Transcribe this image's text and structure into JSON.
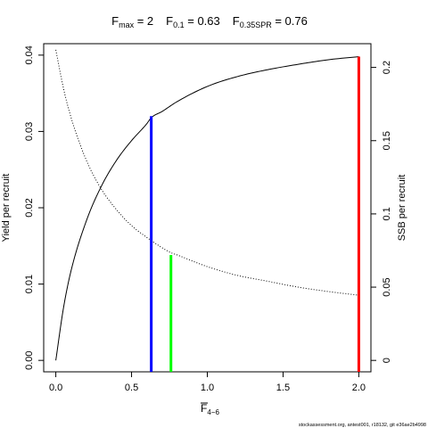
{
  "chart_data": {
    "type": "line",
    "title_parts": {
      "fmax_main": "F",
      "fmax_sub": "max",
      "fmax_value": " = 2",
      "f01_main": "F",
      "f01_sub": "0.1",
      "f01_value": " = 0.63",
      "fspr_main": "F",
      "fspr_sub": "0.35SPR",
      "fspr_value": " = 0.76"
    },
    "xlabel": {
      "main": "F",
      "sub": "4−6"
    },
    "ylabel_left": "Yield per recruit",
    "ylabel_right": "SSB per recruit",
    "xlim": [
      -0.08,
      2.08
    ],
    "ylim_left": [
      -0.0015,
      0.0415
    ],
    "ylim_right": [
      -0.0078,
      0.2162
    ],
    "x_ticks": [
      0,
      0.5,
      1,
      1.5,
      2
    ],
    "x_tick_labels": [
      "0.0",
      "0.5",
      "1.0",
      "1.5",
      "2.0"
    ],
    "y_left_ticks": [
      0,
      0.01,
      0.02,
      0.03,
      0.04
    ],
    "y_left_tick_labels": [
      "0.00",
      "0.01",
      "0.02",
      "0.03",
      "0.04"
    ],
    "y_right_ticks": [
      0,
      0.05,
      0.1,
      0.15,
      0.2
    ],
    "y_right_tick_labels": [
      "0",
      "0.05",
      "0.1",
      "0.15",
      "0.2"
    ],
    "series": [
      {
        "name": "Yield per recruit",
        "axis": "left",
        "style": "solid",
        "color": "#000000",
        "x": [
          0,
          0.05,
          0.1,
          0.2,
          0.3,
          0.4,
          0.5,
          0.6,
          0.63,
          0.7,
          0.8,
          1.0,
          1.2,
          1.4,
          1.6,
          1.8,
          2.0
        ],
        "y": [
          0,
          0.0068,
          0.0117,
          0.0182,
          0.0228,
          0.0262,
          0.0288,
          0.031,
          0.0318,
          0.0326,
          0.0339,
          0.0359,
          0.0372,
          0.0381,
          0.0388,
          0.0394,
          0.0398
        ]
      },
      {
        "name": "SSB per recruit",
        "axis": "right",
        "style": "dotted",
        "color": "#000000",
        "x": [
          0,
          0.05,
          0.1,
          0.2,
          0.3,
          0.4,
          0.5,
          0.6,
          0.7,
          0.76,
          0.8,
          1.0,
          1.2,
          1.4,
          1.6,
          1.8,
          2.0
        ],
        "y": [
          0.212,
          0.186,
          0.166,
          0.137,
          0.117,
          0.103,
          0.092,
          0.084,
          0.077,
          0.0735,
          0.072,
          0.064,
          0.058,
          0.054,
          0.05,
          0.047,
          0.0445
        ]
      }
    ],
    "reference_lines": [
      {
        "name": "F0.1",
        "x": 0.63,
        "y_top": 0.032,
        "axis": "left",
        "color": "#0000ff"
      },
      {
        "name": "F0.35SPR",
        "x": 0.76,
        "y_top": 0.0138,
        "axis": "left",
        "color": "#00ff00"
      },
      {
        "name": "Fmax",
        "x": 2.0,
        "y_top": 0.0398,
        "axis": "left",
        "color": "#ff0000"
      }
    ],
    "grid": false,
    "legend": "none"
  },
  "footer_text": "stockassessment.org, antest001, r18132, git e36ae2b4998"
}
